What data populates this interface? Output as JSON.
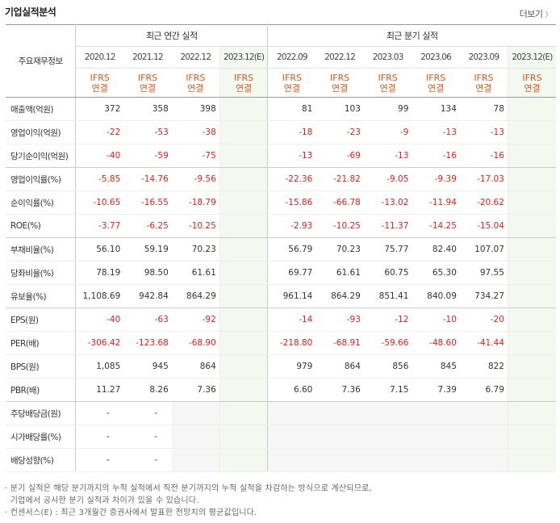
{
  "section": {
    "title": "기업실적분석",
    "more_label": "더보기",
    "more_icon": "chevron-right-icon"
  },
  "header": {
    "label_head": "주요재무정보",
    "annual_group": "최근 연간 실적",
    "quarter_group": "최근 분기 실적",
    "annual_periods": [
      "2020.12",
      "2021.12",
      "2022.12",
      "2023.12(E)"
    ],
    "quarter_periods": [
      "2022.09",
      "2022.12",
      "2023.03",
      "2023.06",
      "2023.09",
      "2023.12(E)"
    ],
    "ifrs_line1": "IFRS",
    "ifrs_line2": "연결"
  },
  "rows": [
    {
      "label": "매출액(억원)",
      "values": [
        "372",
        "358",
        "398",
        "",
        "81",
        "103",
        "99",
        "134",
        "78",
        ""
      ]
    },
    {
      "label": "영업이익(억원)",
      "values": [
        "-22",
        "-53",
        "-38",
        "",
        "-18",
        "-23",
        "-9",
        "-13",
        "-13",
        ""
      ]
    },
    {
      "label": "당기순이익(억원)",
      "values": [
        "-40",
        "-59",
        "-75",
        "",
        "-13",
        "-69",
        "-13",
        "-16",
        "-16",
        ""
      ]
    },
    {
      "label": "영업이익률(%)",
      "values": [
        "-5.85",
        "-14.76",
        "-9.56",
        "",
        "-22.36",
        "-21.82",
        "-9.05",
        "-9.39",
        "-17.03",
        ""
      ]
    },
    {
      "label": "순이익률(%)",
      "values": [
        "-10.65",
        "-16.55",
        "-18.79",
        "",
        "-15.86",
        "-66.78",
        "-13.02",
        "-11.94",
        "-20.62",
        ""
      ]
    },
    {
      "label": "ROE(%)",
      "values": [
        "-3.77",
        "-6.25",
        "-10.25",
        "",
        "-2.93",
        "-10.25",
        "-11.37",
        "-14.25",
        "-15.04",
        ""
      ]
    },
    {
      "label": "부채비율(%)",
      "values": [
        "56.10",
        "59.19",
        "70.23",
        "",
        "56.79",
        "70.23",
        "75.77",
        "82.40",
        "107.07",
        ""
      ]
    },
    {
      "label": "당좌비율(%)",
      "values": [
        "78.19",
        "98.50",
        "61.61",
        "",
        "69.77",
        "61.61",
        "60.75",
        "65.30",
        "97.55",
        ""
      ]
    },
    {
      "label": "유보율(%)",
      "values": [
        "1,108.69",
        "942.84",
        "864.29",
        "",
        "961.14",
        "864.29",
        "851.41",
        "840.09",
        "734.27",
        ""
      ]
    },
    {
      "label": "EPS(원)",
      "values": [
        "-40",
        "-63",
        "-92",
        "",
        "-14",
        "-93",
        "-12",
        "-10",
        "-20",
        ""
      ]
    },
    {
      "label": "PER(배)",
      "values": [
        "-306.42",
        "-123.68",
        "-68.90",
        "",
        "-218.80",
        "-68.91",
        "-59.66",
        "-48.60",
        "-41.44",
        ""
      ]
    },
    {
      "label": "BPS(원)",
      "values": [
        "1,085",
        "945",
        "864",
        "",
        "979",
        "864",
        "856",
        "845",
        "822",
        ""
      ]
    },
    {
      "label": "PBR(배)",
      "values": [
        "11.27",
        "8.26",
        "7.36",
        "",
        "6.60",
        "7.36",
        "7.15",
        "7.39",
        "6.79",
        ""
      ]
    },
    {
      "label": "주당배당금(원)",
      "values": [
        "-",
        "-",
        "",
        "",
        "",
        "",
        "",
        "",
        "",
        ""
      ]
    },
    {
      "label": "시가배당률(%)",
      "values": [
        "-",
        "-",
        "",
        "",
        "",
        "",
        "",
        "",
        "",
        ""
      ]
    },
    {
      "label": "배당성향(%)",
      "values": [
        "-",
        "-",
        "",
        "",
        "",
        "",
        "",
        "",
        "",
        ""
      ]
    }
  ],
  "notes": [
    "· 분기 실적은 해당 분기까지의 누적 실적에서 직전 분기까지의 누적 실적을 차감하는 방식으로 계산되므로,",
    "  기업에서 공시한 분기 실적과 차이가 있을 수 있습니다.",
    "· 컨센서스(E) : 최근 3개월간 증권사에서 발표한 전망치의 평균값입니다."
  ]
}
